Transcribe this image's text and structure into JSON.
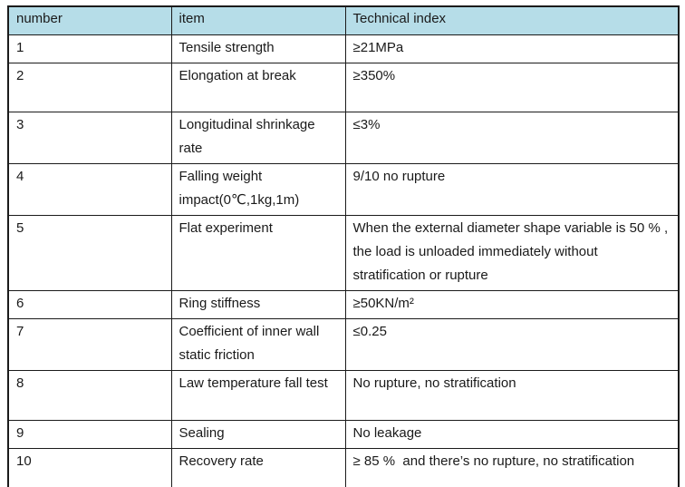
{
  "table": {
    "columns": [
      {
        "key": "number",
        "label": "number"
      },
      {
        "key": "item",
        "label": "item"
      },
      {
        "key": "tech",
        "label": "Technical index"
      }
    ],
    "rows": [
      {
        "number": "1",
        "item": "Tensile strength",
        "tech": "≥21MPa"
      },
      {
        "number": "2",
        "item": "Elongation at break",
        "tech": "≥350%"
      },
      {
        "number": "3",
        "item": "Longitudinal shrinkage rate",
        "tech": "≤3%"
      },
      {
        "number": "4",
        "item": "Falling weight impact(0℃,1kg,1m)",
        "tech": "9/10 no rupture"
      },
      {
        "number": "5",
        "item": "Flat experiment",
        "tech": "When the external diameter shape variable is 50 % , the load is unloaded immediately without stratification or rupture"
      },
      {
        "number": "6",
        "item": "Ring stiffness",
        "tech": "≥50KN/m²"
      },
      {
        "number": "7",
        "item": "Coefficient of inner wall static friction",
        "tech": "≤0.25"
      },
      {
        "number": "8",
        "item": "Law temperature fall test",
        "tech": "No rupture, no stratification"
      },
      {
        "number": "9",
        "item": "Sealing",
        "tech": "No leakage"
      },
      {
        "number": "10",
        "item": "Recovery rate",
        "tech": "≥ 85 %  and there’s no rupture, no stratification"
      }
    ]
  },
  "colors": {
    "header_bg": "#b6dde8",
    "border": "#1b1b1b",
    "text": "#1a1a1a"
  }
}
